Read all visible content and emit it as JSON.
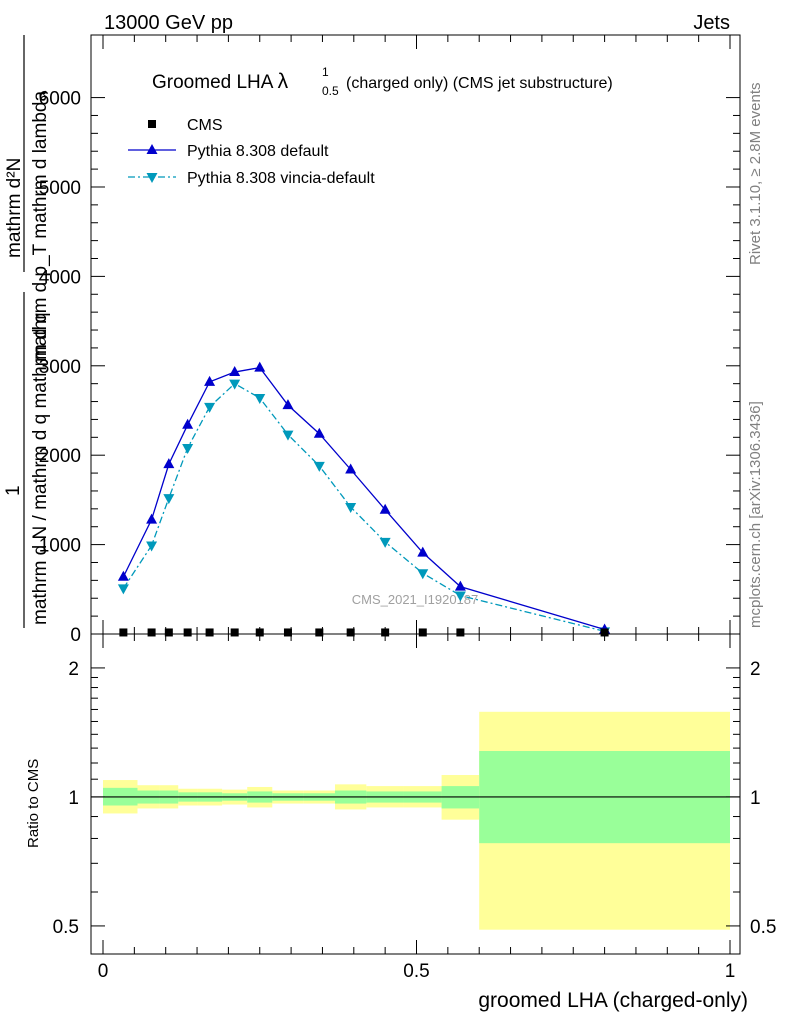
{
  "header": {
    "left": "13000 GeV pp",
    "right": "Jets"
  },
  "side_text": {
    "rivet": "Rivet 3.1.10, ≥ 2.8M events",
    "mcplots": "mcplots.cern.ch [arXiv:1306.3436]"
  },
  "watermark": "CMS_2021_I1920187",
  "chart_data": [
    {
      "type": "line",
      "panel": "main",
      "title": {
        "prefix": "Groomed LHA ",
        "lambda": "λ",
        "sup": "1",
        "sub": "0.5",
        "suffix": " (charged only) (CMS jet substructure)"
      },
      "ylabel": {
        "numerator": "mathrm d²N",
        "denominator": "mathrm d p_T mathrm d lambda",
        "one": "1",
        "prefactor": "mathrm d N / mathrm d q mathrm d q"
      },
      "xlim": [
        -0.02,
        1.0
      ],
      "ylim": [
        0,
        6000
      ],
      "yticks": [
        0,
        1000,
        2000,
        3000,
        4000,
        5000,
        6000
      ],
      "ytick_labels": [
        "0",
        "1000",
        "2000",
        "3000",
        "4000",
        "5000",
        "6000"
      ],
      "x": [
        0.0325,
        0.0775,
        0.105,
        0.135,
        0.17,
        0.21,
        0.25,
        0.295,
        0.345,
        0.395,
        0.45,
        0.51,
        0.57,
        0.8
      ],
      "series": [
        {
          "name": "CMS",
          "color": "#000000",
          "marker": "square",
          "values": [
            6,
            6,
            6,
            6,
            6,
            6,
            6,
            6,
            6,
            6,
            6,
            6,
            6,
            6
          ]
        },
        {
          "name": "Pythia 8.308 default",
          "color": "#0000cc",
          "marker": "triangle-up",
          "line": "solid",
          "values": [
            640,
            1280,
            1900,
            2340,
            2820,
            2930,
            2980,
            2560,
            2240,
            1840,
            1390,
            910,
            530,
            50
          ]
        },
        {
          "name": "Pythia 8.308 vincia-default",
          "color": "#0099bb",
          "marker": "triangle-down",
          "line": "dashdot",
          "values": [
            510,
            990,
            1520,
            2080,
            2540,
            2800,
            2640,
            2230,
            1880,
            1420,
            1030,
            680,
            430,
            30
          ]
        }
      ],
      "legend_position": "top-left"
    },
    {
      "type": "area",
      "panel": "ratio",
      "ylabel": "Ratio to CMS",
      "xlabel": "groomed LHA (charged-only)",
      "scale": "log",
      "ylim": [
        0.43,
        2.4
      ],
      "yticks": [
        0.5,
        1,
        2
      ],
      "ytick_labels": [
        "0.5",
        "1",
        "2"
      ],
      "xticks": [
        0,
        0.5,
        1
      ],
      "xtick_labels": [
        "0",
        "0.5",
        "1"
      ],
      "reference_line": 1,
      "bins": [
        {
          "x0": 0.0,
          "x1": 0.055,
          "inner": [
            0.955,
            1.05
          ],
          "outer": [
            0.915,
            1.095
          ]
        },
        {
          "x0": 0.055,
          "x1": 0.09,
          "inner": [
            0.965,
            1.035
          ],
          "outer": [
            0.94,
            1.065
          ]
        },
        {
          "x0": 0.09,
          "x1": 0.12,
          "inner": [
            0.965,
            1.035
          ],
          "outer": [
            0.94,
            1.065
          ]
        },
        {
          "x0": 0.12,
          "x1": 0.15,
          "inner": [
            0.975,
            1.025
          ],
          "outer": [
            0.955,
            1.045
          ]
        },
        {
          "x0": 0.15,
          "x1": 0.19,
          "inner": [
            0.975,
            1.025
          ],
          "outer": [
            0.955,
            1.045
          ]
        },
        {
          "x0": 0.19,
          "x1": 0.23,
          "inner": [
            0.98,
            1.02
          ],
          "outer": [
            0.96,
            1.04
          ]
        },
        {
          "x0": 0.23,
          "x1": 0.27,
          "inner": [
            0.97,
            1.03
          ],
          "outer": [
            0.945,
            1.055
          ]
        },
        {
          "x0": 0.27,
          "x1": 0.32,
          "inner": [
            0.98,
            1.02
          ],
          "outer": [
            0.965,
            1.035
          ]
        },
        {
          "x0": 0.32,
          "x1": 0.37,
          "inner": [
            0.98,
            1.02
          ],
          "outer": [
            0.965,
            1.035
          ]
        },
        {
          "x0": 0.37,
          "x1": 0.42,
          "inner": [
            0.965,
            1.035
          ],
          "outer": [
            0.935,
            1.07
          ]
        },
        {
          "x0": 0.42,
          "x1": 0.48,
          "inner": [
            0.97,
            1.03
          ],
          "outer": [
            0.945,
            1.06
          ]
        },
        {
          "x0": 0.48,
          "x1": 0.54,
          "inner": [
            0.97,
            1.03
          ],
          "outer": [
            0.945,
            1.06
          ]
        },
        {
          "x0": 0.54,
          "x1": 0.6,
          "inner": [
            0.94,
            1.06
          ],
          "outer": [
            0.885,
            1.125
          ]
        },
        {
          "x0": 0.6,
          "x1": 1.0,
          "inner": [
            0.78,
            1.28
          ],
          "outer": [
            0.49,
            1.58
          ]
        }
      ],
      "colors": {
        "inner": "#99ff99",
        "outer": "#ffff99"
      }
    }
  ]
}
